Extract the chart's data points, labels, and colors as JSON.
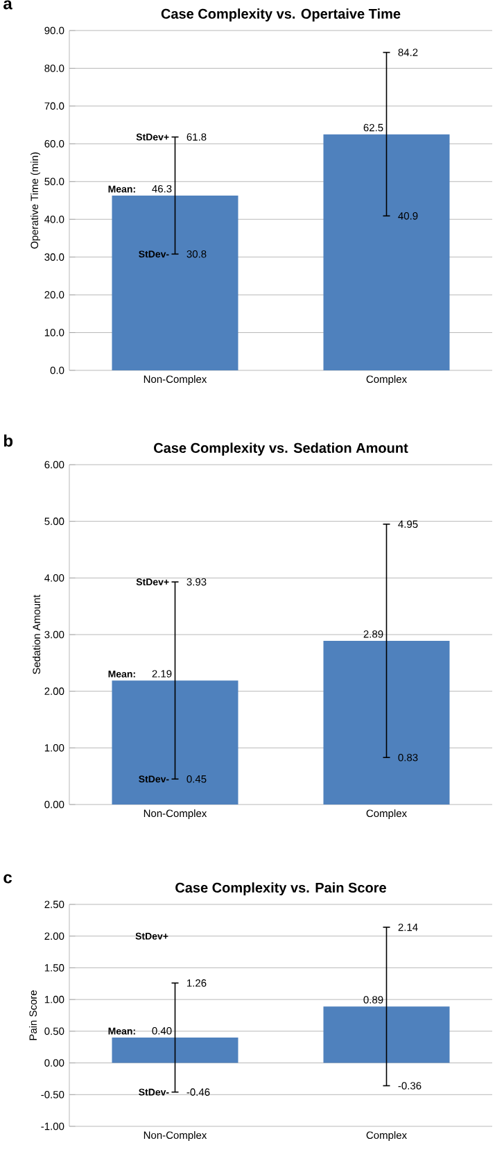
{
  "chart_data": [
    {
      "type": "bar",
      "title": "Case Complexity vs. Opertaive Time",
      "ylabel": "Operative Time (min)",
      "categories": [
        "Non-Complex",
        "Complex"
      ],
      "values": [
        46.3,
        62.5
      ],
      "color": "#4f81bd",
      "errors": [
        [
          30.8,
          61.8
        ],
        [
          40.9,
          84.2
        ]
      ],
      "value_labels": [
        "46.3",
        "62.5"
      ],
      "ylim": [
        0,
        90
      ],
      "yticks": [
        {
          "value": 0,
          "label": "0.0"
        },
        {
          "value": 10,
          "label": "10.0"
        },
        {
          "value": 20,
          "label": "20.0"
        },
        {
          "value": 30,
          "label": "30.0"
        },
        {
          "value": 40,
          "label": "40.0"
        },
        {
          "value": 50,
          "label": "50.0"
        },
        {
          "value": 60,
          "label": "60.0"
        },
        {
          "value": 70,
          "label": "70.0"
        },
        {
          "value": 80,
          "label": "80.0"
        },
        {
          "value": 90,
          "label": "90.0"
        }
      ],
      "grid": "y",
      "annotations": [
        "a",
        "Mean:",
        {
          "text": "StDev+",
          "x": "Non-Complex",
          "y": 61.8
        },
        {
          "text": "StDev-",
          "x": "Non-Complex",
          "y": 30.8
        },
        {
          "text": "61.8",
          "x": "Non-Complex",
          "y": 61.8
        },
        {
          "text": "30.8",
          "x": "Non-Complex",
          "y": 30.8
        },
        {
          "text": "84.2",
          "x": "Complex",
          "y": 84.2
        },
        {
          "text": "40.9",
          "x": "Complex",
          "y": 40.9
        }
      ]
    },
    {
      "type": "bar",
      "title": "Case Complexity vs. Sedation Amount",
      "ylabel": "Sedation Amount",
      "categories": [
        "Non-Complex",
        "Complex"
      ],
      "values": [
        2.19,
        2.89
      ],
      "color": "#4f81bd",
      "errors": [
        [
          0.45,
          3.93
        ],
        [
          0.83,
          4.95
        ]
      ],
      "value_labels": [
        "2.19",
        "2.89"
      ],
      "ylim": [
        0,
        6
      ],
      "yticks": [
        {
          "value": 0,
          "label": "0.00"
        },
        {
          "value": 1,
          "label": "1.00"
        },
        {
          "value": 2,
          "label": "2.00"
        },
        {
          "value": 3,
          "label": "3.00"
        },
        {
          "value": 4,
          "label": "4.00"
        },
        {
          "value": 5,
          "label": "5.00"
        },
        {
          "value": 6,
          "label": "6.00"
        }
      ],
      "grid": "y",
      "annotations": [
        "b",
        "Mean:",
        {
          "text": "StDev+",
          "x": "Non-Complex",
          "y": 3.93
        },
        {
          "text": "StDev-",
          "x": "Non-Complex",
          "y": 0.45
        },
        {
          "text": "3.93",
          "x": "Non-Complex",
          "y": 3.93
        },
        {
          "text": "0.45",
          "x": "Non-Complex",
          "y": 0.45
        },
        {
          "text": "4.95",
          "x": "Complex",
          "y": 4.95
        },
        {
          "text": "0.83",
          "x": "Complex",
          "y": 0.83
        }
      ]
    },
    {
      "type": "bar",
      "title": "Case Complexity vs. Pain Score",
      "ylabel": "Pain Score",
      "categories": [
        "Non-Complex",
        "Complex"
      ],
      "values": [
        0.4,
        0.89
      ],
      "color": "#4f81bd",
      "errors": [
        [
          -0.46,
          1.26
        ],
        [
          -0.36,
          2.14
        ]
      ],
      "value_labels": [
        "0.40",
        "0.89"
      ],
      "ylim": [
        -1,
        2.5
      ],
      "yticks": [
        {
          "value": -1,
          "label": "-1.00"
        },
        {
          "value": -0.5,
          "label": "-0.50"
        },
        {
          "value": 0,
          "label": "0.00"
        },
        {
          "value": 0.5,
          "label": "0.50"
        },
        {
          "value": 1,
          "label": "1.00"
        },
        {
          "value": 1.5,
          "label": "1.50"
        },
        {
          "value": 2,
          "label": "2.00"
        },
        {
          "value": 2.5,
          "label": "2.50"
        }
      ],
      "grid": "y",
      "annotations": [
        "c",
        "Mean:",
        "StDev+",
        {
          "text": "StDev-",
          "x": "Non-Complex",
          "y": -0.46
        },
        {
          "text": "1.26",
          "x": "Non-Complex",
          "y": 1.26
        },
        {
          "text": "-0.46",
          "x": "Non-Complex",
          "y": -0.46
        },
        {
          "text": "2.14",
          "x": "Complex",
          "y": 2.14
        },
        {
          "text": "-0.36",
          "x": "Complex",
          "y": -0.36
        }
      ]
    }
  ]
}
